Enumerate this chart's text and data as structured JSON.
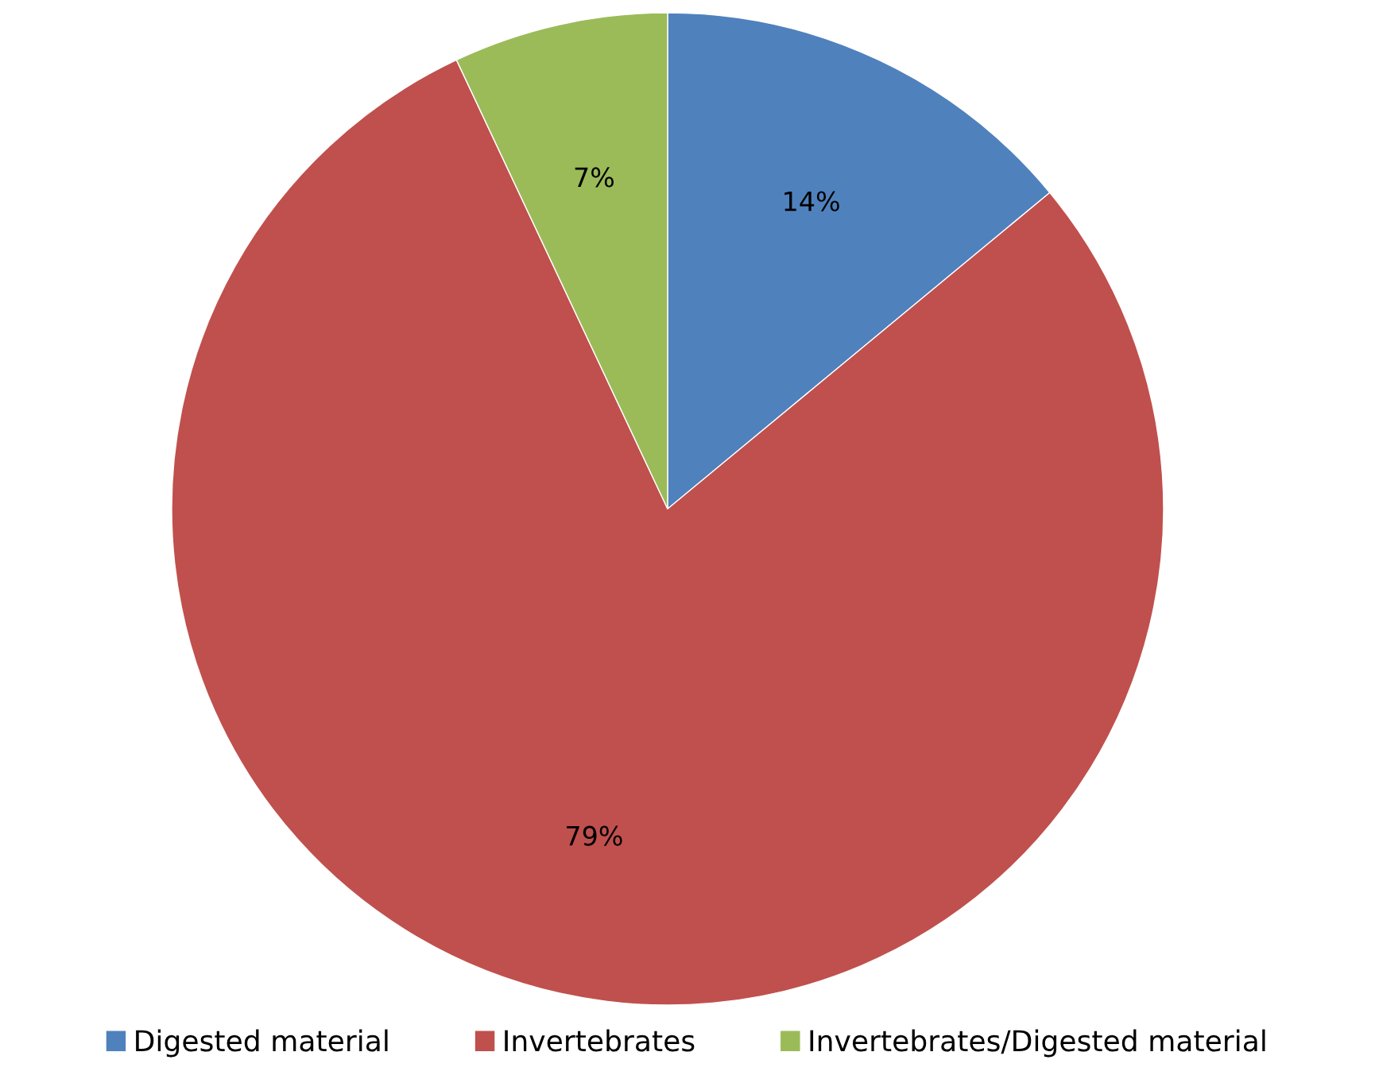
{
  "chart_data": {
    "type": "pie",
    "categories": [
      "Digested material",
      "Invertebrates",
      "Invertebrates/Digested material"
    ],
    "values": [
      14,
      79,
      7
    ],
    "colors": [
      "#4f81bd",
      "#c0504d",
      "#9bbb59"
    ],
    "value_labels": [
      "14%",
      "79%",
      "7%"
    ],
    "legend": "bottom"
  }
}
